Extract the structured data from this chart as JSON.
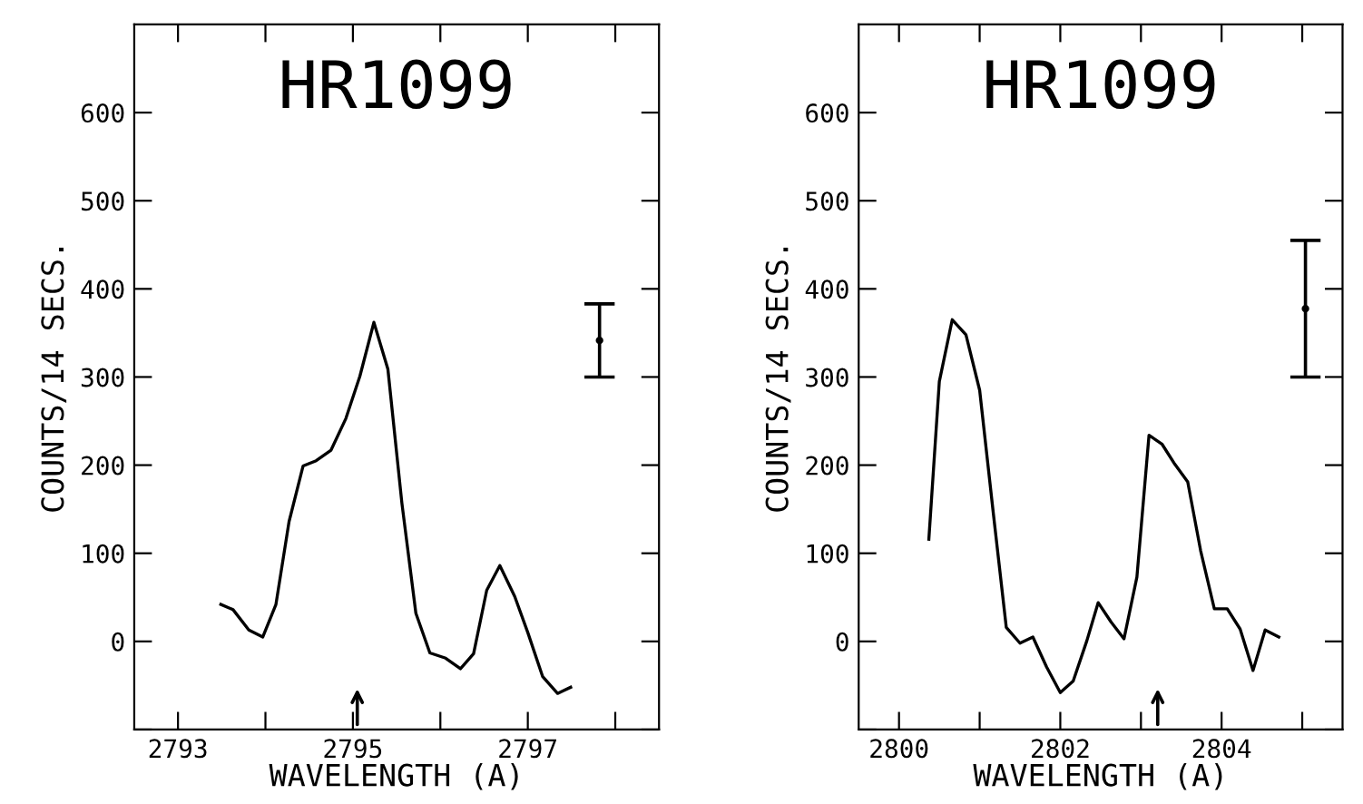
{
  "chart_data": [
    {
      "type": "line",
      "title": "HR1099",
      "xlabel": "WAVELENGTH (A)",
      "ylabel": "COUNTS/14 SECS.",
      "xlim": [
        2792.5,
        2798.5
      ],
      "ylim": [
        -100,
        700
      ],
      "xticks": [
        2793,
        {
          "value": 2794,
          "label": null
        },
        2795,
        {
          "value": 2796,
          "label": null
        },
        2797,
        {
          "value": 2798,
          "label": null
        }
      ],
      "yticks": [
        {
          "value": -100,
          "label": null
        },
        0,
        100,
        200,
        300,
        400,
        500,
        600
      ],
      "grid": false,
      "legend": false,
      "marker": "none",
      "line_style": "solid",
      "series": [
        {
          "color": "#000000",
          "x": [
            2793.49,
            2793.63,
            2793.81,
            2793.97,
            2794.12,
            2794.27,
            2794.43,
            2794.58,
            2794.75,
            2794.92,
            2795.08,
            2795.24,
            2795.4,
            2795.56,
            2795.72,
            2795.88,
            2796.06,
            2796.23,
            2796.38,
            2796.53,
            2796.68,
            2796.85,
            2797.0,
            2797.17,
            2797.34,
            2797.49
          ],
          "values": [
            42,
            36,
            13,
            5,
            42,
            136,
            199,
            205,
            217,
            253,
            301,
            362,
            309,
            157,
            32,
            -13,
            -19,
            -31,
            -14,
            58,
            86,
            51,
            10,
            -40,
            -59,
            -52
          ]
        },
        {
          "type": "scatter",
          "color": "#000000",
          "x": [
            2797.82
          ],
          "values": [
            341.5
          ],
          "marker": "circle",
          "errors": [
            [
              300,
              383
            ]
          ]
        }
      ]
    },
    {
      "type": "line",
      "title": "HR1099",
      "xlabel": "WAVELENGTH (A)",
      "ylabel": "COUNTS/14 SECS.",
      "xlim": [
        2799.5,
        2805.5
      ],
      "ylim": [
        -100,
        700
      ],
      "xticks": [
        2800,
        {
          "value": 2801,
          "label": null
        },
        2802,
        {
          "value": 2803,
          "label": null
        },
        2804,
        {
          "value": 2805,
          "label": null
        }
      ],
      "yticks": [
        {
          "value": -100,
          "label": null
        },
        0,
        100,
        200,
        300,
        400,
        500,
        600
      ],
      "grid": false,
      "legend": false,
      "marker": "none",
      "line_style": "solid",
      "series": [
        {
          "color": "#000000",
          "x": [
            2800.37,
            2800.5,
            2800.66,
            2800.83,
            2801.0,
            2801.17,
            2801.33,
            2801.5,
            2801.66,
            2801.83,
            2802.0,
            2802.16,
            2802.33,
            2802.47,
            2802.63,
            2802.79,
            2802.95,
            2803.1,
            2803.26,
            2803.42,
            2803.58,
            2803.74,
            2803.91,
            2804.07,
            2804.23,
            2804.39,
            2804.54,
            2804.71
          ],
          "values": [
            116,
            295,
            365,
            348,
            285,
            145,
            16,
            -2,
            5,
            -29,
            -58,
            -45,
            1,
            44,
            22,
            3,
            73,
            234,
            224,
            201,
            181,
            103,
            37,
            37,
            14,
            -33,
            13,
            5
          ]
        },
        {
          "type": "scatter",
          "color": "#000000",
          "x": [
            2805.04
          ],
          "values": [
            377.5
          ],
          "marker": "circle",
          "errors": [
            [
              300,
              455
            ]
          ]
        }
      ]
    }
  ]
}
